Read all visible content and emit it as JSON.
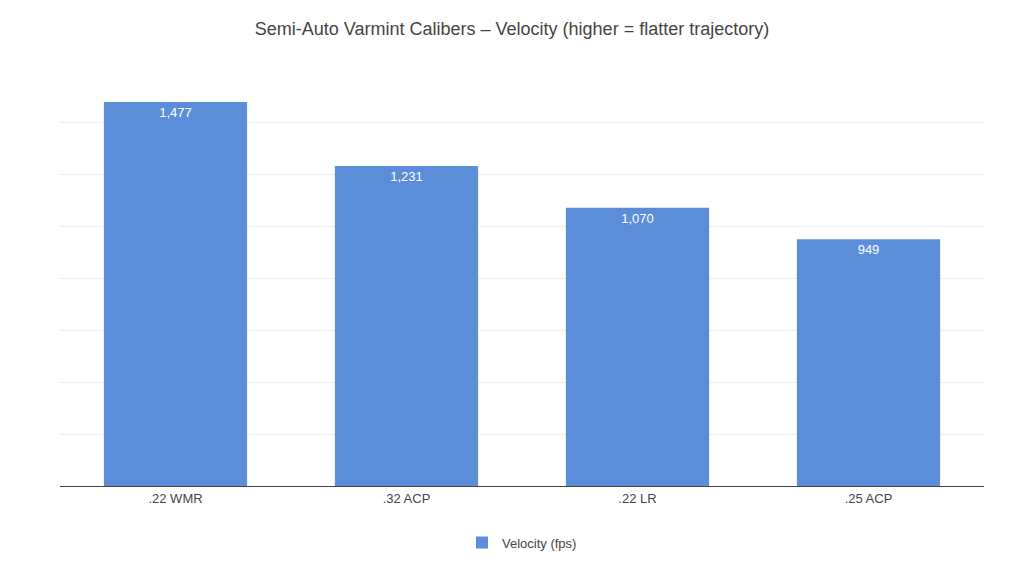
{
  "chart_data": {
    "type": "bar",
    "title": "Semi-Auto Varmint Calibers – Velocity (higher = flatter trajectory)",
    "categories": [
      ".22 WMR",
      ".32 ACP",
      ".22 LR",
      ".25 ACP"
    ],
    "series": [
      {
        "name": "Velocity (fps)",
        "color": "#5B8DD9",
        "values": [
          1477,
          1231,
          1070,
          949
        ],
        "value_labels": [
          "1,477",
          "1,231",
          "1,070",
          "949"
        ]
      }
    ],
    "ylim": [
      0,
      1600
    ],
    "yticks": [
      0,
      200,
      400,
      600,
      800,
      1000,
      1200,
      1400,
      1600
    ],
    "grid": true,
    "legend": "bottom",
    "data_labels": true,
    "tick_labels": "x"
  }
}
